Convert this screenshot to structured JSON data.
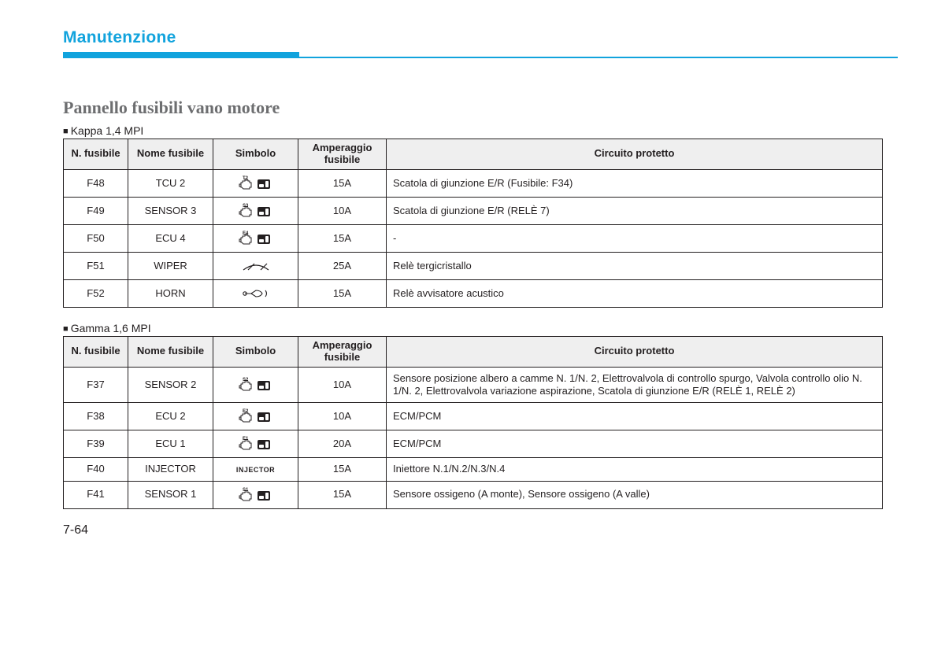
{
  "header": {
    "section": "Manutenzione"
  },
  "panel": {
    "title": "Pannello fusibili vano motore",
    "columns": {
      "c1": "N. fusibile",
      "c2": "Nome fusibile",
      "c3": "Simbolo",
      "c4_l1": "Amperaggio",
      "c4_l2": "fusibile",
      "c5": "Circuito protetto"
    }
  },
  "tables": [
    {
      "subhead": "Kappa 1,4 MPI",
      "rows": [
        {
          "num": "F48",
          "name": "TCU 2",
          "sym": "engine",
          "sym_tag": "T2",
          "amp": "15A",
          "circuit": "Scatola di giunzione E/R (Fusibile: F34)"
        },
        {
          "num": "F49",
          "name": "SENSOR 3",
          "sym": "engine",
          "sym_tag": "S3",
          "amp": "10A",
          "circuit": "Scatola di giunzione E/R (RELÈ 7)"
        },
        {
          "num": "F50",
          "name": "ECU 4",
          "sym": "engine",
          "sym_tag": "E4",
          "amp": "15A",
          "circuit": "-"
        },
        {
          "num": "F51",
          "name": "WIPER",
          "sym": "wiper",
          "sym_tag": "",
          "amp": "25A",
          "circuit": "Relè tergicristallo"
        },
        {
          "num": "F52",
          "name": "HORN",
          "sym": "horn",
          "sym_tag": "",
          "amp": "15A",
          "circuit": "Relè avvisatore acustico"
        }
      ]
    },
    {
      "subhead": "Gamma 1,6 MPI",
      "rows": [
        {
          "num": "F37",
          "name": "SENSOR 2",
          "sym": "engine",
          "sym_tag": "S2",
          "amp": "10A",
          "circuit": "Sensore posizione albero a camme N. 1/N. 2, Elettrovalvola di controllo spurgo, Valvola controllo olio N. 1/N. 2, Elettrovalvola variazione aspirazione, Scatola di giunzione E/R (RELÈ 1, RELÈ 2)"
        },
        {
          "num": "F38",
          "name": "ECU 2",
          "sym": "engine",
          "sym_tag": "E2",
          "amp": "10A",
          "circuit": "ECM/PCM"
        },
        {
          "num": "F39",
          "name": "ECU 1",
          "sym": "engine",
          "sym_tag": "E1",
          "amp": "20A",
          "circuit": "ECM/PCM"
        },
        {
          "num": "F40",
          "name": "INJECTOR",
          "sym": "injector",
          "sym_tag": "",
          "amp": "15A",
          "circuit": "Iniettore N.1/N.2/N.3/N.4"
        },
        {
          "num": "F41",
          "name": "SENSOR 1",
          "sym": "engine",
          "sym_tag": "S1",
          "amp": "15A",
          "circuit": "Sensore ossigeno (A monte), Sensore ossigeno (A valle)"
        }
      ]
    }
  ],
  "pageNumber": "7-64",
  "colors": {
    "accent": "#11a3dd",
    "grey_title": "#6d6e70",
    "header_bg": "#efefef",
    "text": "#231f20"
  }
}
